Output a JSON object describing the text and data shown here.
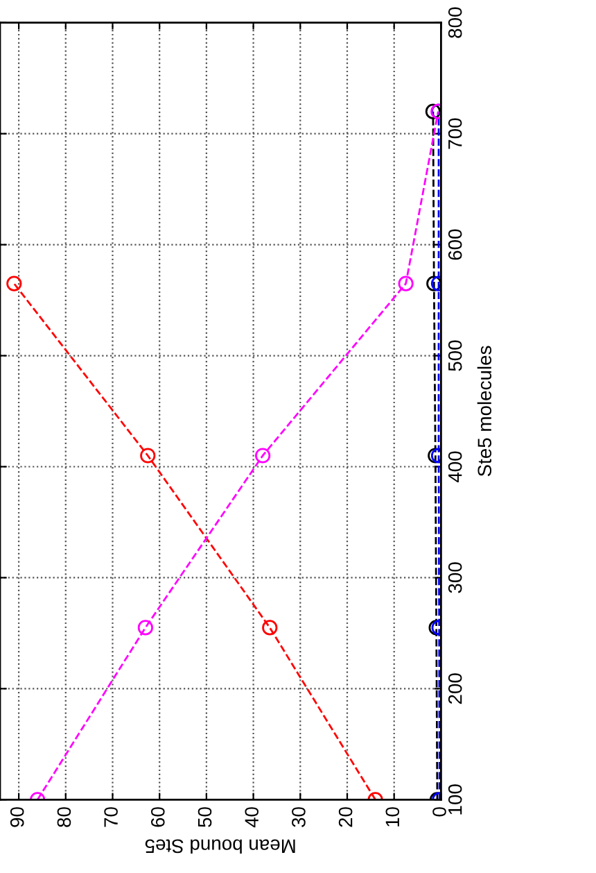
{
  "chart_data": {
    "type": "line",
    "xlabel": "Mean bound Ste5",
    "ylabel": "Ste5 molecules",
    "series": [
      {
        "color": "#ff0000",
        "x": [
          14,
          36.5,
          62.5,
          91
        ],
        "values": [
          100,
          255,
          410,
          565
        ]
      },
      {
        "color": "#000000",
        "x": [
          0.8,
          1,
          1.2,
          1.5,
          1.7
        ],
        "values": [
          100,
          255,
          410,
          565,
          720
        ]
      },
      {
        "color": "#0000ff",
        "x": [
          0.3,
          0.4,
          0.5,
          0.5,
          0.5
        ],
        "values": [
          100,
          255,
          410,
          565,
          720
        ]
      },
      {
        "color": "#ff00ff",
        "x": [
          86,
          63,
          38,
          7.5,
          0.6
        ],
        "values": [
          100,
          255,
          410,
          565,
          720
        ]
      }
    ],
    "xlim": [
      94,
      0
    ],
    "xticks": [
      0,
      10,
      20,
      30,
      40,
      50,
      60,
      70,
      80,
      90
    ],
    "ylim": [
      100,
      800
    ],
    "yticks": [
      100,
      200,
      300,
      400,
      500,
      600,
      700,
      800
    ],
    "grid": true,
    "marker": "circle",
    "line_style": "dashed"
  }
}
